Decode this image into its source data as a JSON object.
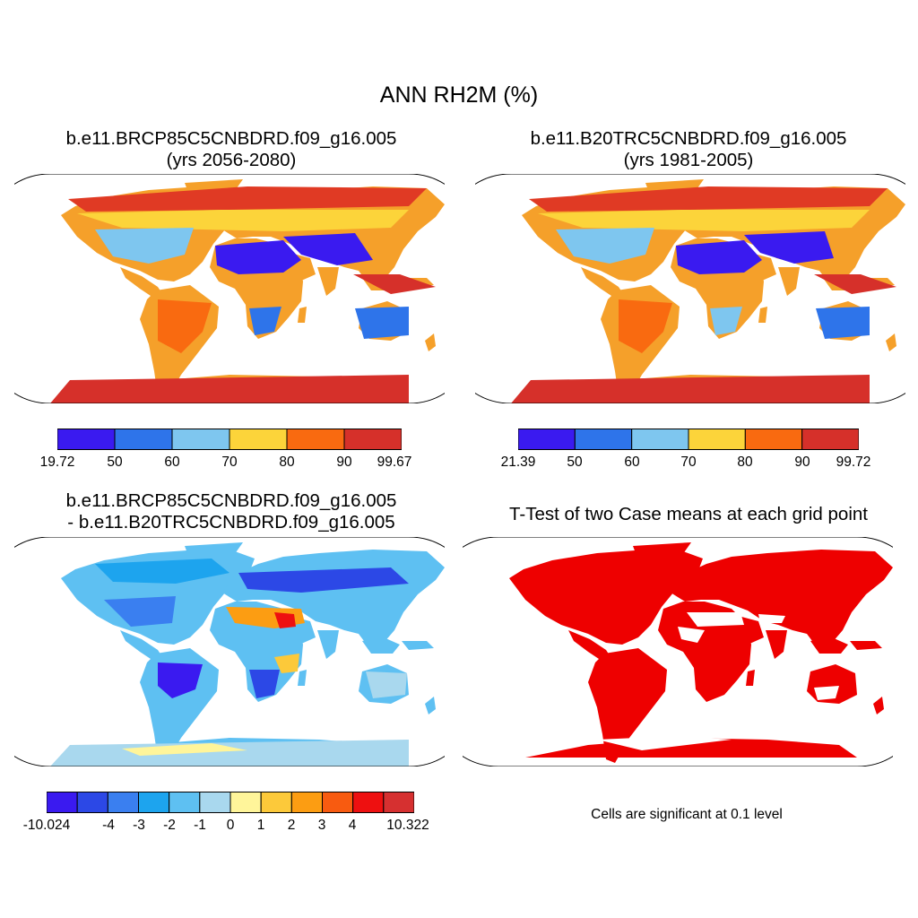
{
  "figure": {
    "title": "ANN RH2M (%)"
  },
  "panels": [
    {
      "id": "future",
      "title_line1": "b.e11.BRCP85C5CNBDRD.f09_g16.005",
      "title_line2": "(yrs 2056-2080)",
      "colorbar": {
        "labels": [
          "19.72",
          "50",
          "60",
          "70",
          "80",
          "90",
          "99.67"
        ],
        "colors": [
          "#3a1af0",
          "#2e74ea",
          "#7ec6ef",
          "#fcd43a",
          "#f96a10",
          "#d6302a"
        ]
      }
    },
    {
      "id": "historical",
      "title_line1": "b.e11.B20TRC5CNBDRD.f09_g16.005",
      "title_line2": "(yrs 1981-2005)",
      "colorbar": {
        "labels": [
          "21.39",
          "50",
          "60",
          "70",
          "80",
          "90",
          "99.72"
        ],
        "colors": [
          "#3a1af0",
          "#2e74ea",
          "#7ec6ef",
          "#fcd43a",
          "#f96a10",
          "#d6302a"
        ]
      }
    },
    {
      "id": "difference",
      "title_line1": "b.e11.BRCP85C5CNBDRD.f09_g16.005",
      "title_line2": "- b.e11.B20TRC5CNBDRD.f09_g16.005",
      "colorbar": {
        "labels": [
          "-10.024",
          "-4",
          "-3",
          "-2",
          "-1",
          "0",
          "1",
          "2",
          "3",
          "4",
          "10.322"
        ],
        "colors": [
          "#3a1af0",
          "#2c48e6",
          "#3a7ff0",
          "#1da4ee",
          "#5ec0f2",
          "#a9d8ee",
          "#fff59a",
          "#fcc93a",
          "#fc9d12",
          "#f85b10",
          "#ee1010",
          "#d63030"
        ]
      }
    },
    {
      "id": "ttest",
      "title_line1": "T-Test of two Case means at each grid point",
      "note": "Cells are significant at 0.1 level",
      "significant_color": "#ee0000"
    }
  ]
}
